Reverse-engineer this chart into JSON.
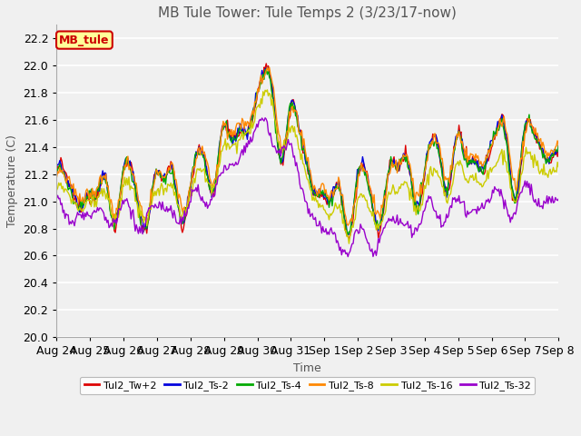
{
  "title": "MB Tule Tower: Tule Temps 2 (3/23/17-now)",
  "xlabel": "Time",
  "ylabel": "Temperature (C)",
  "ylim": [
    20.0,
    22.3
  ],
  "yticks": [
    20.0,
    20.2,
    20.4,
    20.6,
    20.8,
    21.0,
    21.2,
    21.4,
    21.6,
    21.8,
    22.0,
    22.2
  ],
  "x_labels": [
    "Aug 24",
    "Aug 25",
    "Aug 26",
    "Aug 27",
    "Aug 28",
    "Aug 29",
    "Aug 30",
    "Aug 31",
    "Sep 1",
    "Sep 2",
    "Sep 3",
    "Sep 4",
    "Sep 5",
    "Sep 6",
    "Sep 7",
    "Sep 8"
  ],
  "series_order": [
    "Tul2_Tw+2",
    "Tul2_Ts-2",
    "Tul2_Ts-4",
    "Tul2_Ts-8",
    "Tul2_Ts-16",
    "Tul2_Ts-32"
  ],
  "series_colors": [
    "#dd0000",
    "#0000dd",
    "#00aa00",
    "#ff8800",
    "#cccc00",
    "#9900cc"
  ],
  "plot_bg_color": "#f0f0f0",
  "grid_color": "#ffffff",
  "title_fontsize": 11,
  "axis_fontsize": 9,
  "legend_box_bg": "#ffff99",
  "legend_box_edge": "#cc0000",
  "legend_box_text": "MB_tule",
  "figsize": [
    6.4,
    4.8
  ],
  "dpi": 100
}
